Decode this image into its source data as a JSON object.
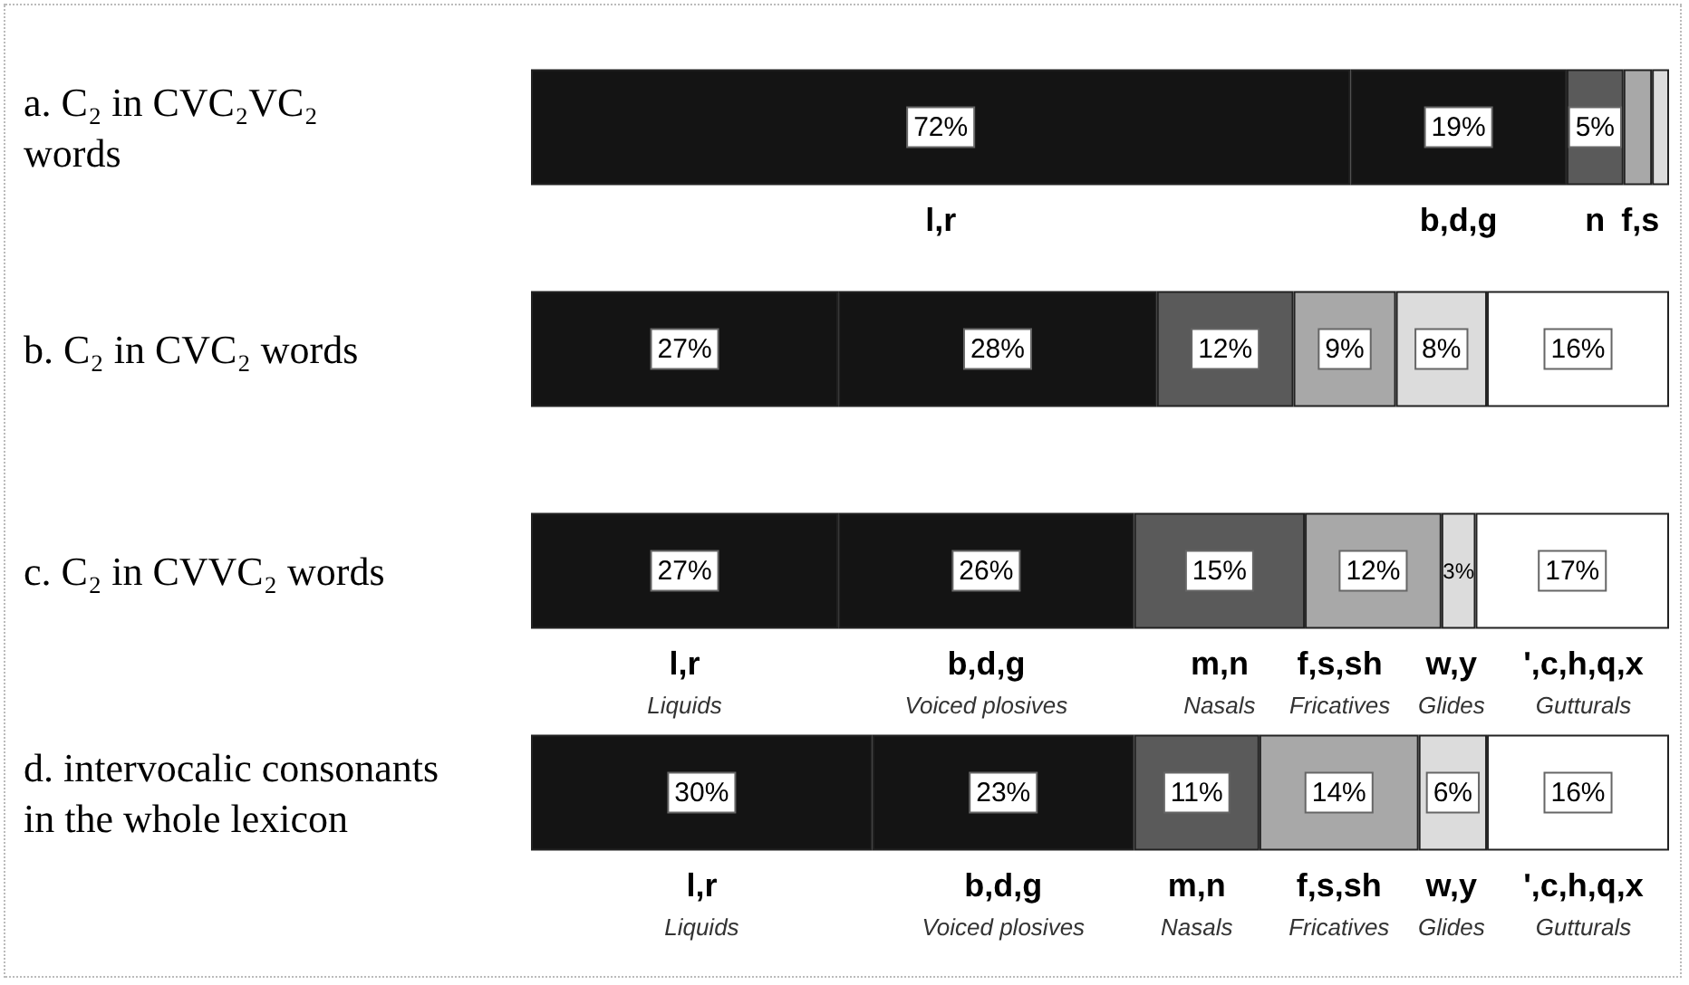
{
  "chart_data": {
    "type": "bar",
    "orientation": "horizontal",
    "stacked": true,
    "categories": [
      "a. C₂ in CVC₂VC₂ words",
      "b. C₂ in CVC₂ words",
      "c. C₂ in CVVC₂ words",
      "d. intervocalic consonants in the whole lexicon"
    ],
    "xlim": [
      0,
      100
    ],
    "tick_labels": "y",
    "grid": false,
    "series": [
      {
        "color": "#141414",
        "values": [
          72,
          27,
          27,
          30
        ],
        "value_labels": [
          "72%",
          "27%",
          "27%",
          "30%"
        ]
      },
      {
        "color": "#141414",
        "values": [
          19,
          28,
          26,
          23
        ],
        "value_labels": [
          "19%",
          "28%",
          "26%",
          "23%"
        ]
      },
      {
        "color": "#5a5a5a",
        "values": [
          5,
          12,
          15,
          11
        ],
        "value_labels": [
          "5%",
          "12%",
          "15%",
          "11%"
        ]
      },
      {
        "color": "#a8a8a8",
        "values": [
          2.5,
          9,
          12,
          14
        ],
        "value_labels": [
          null,
          "9%",
          "12%",
          "14%"
        ]
      },
      {
        "color": "#dcdcdc",
        "values": [
          1.5,
          8,
          3,
          6
        ],
        "value_labels": [
          null,
          "8%",
          "3%",
          "6%"
        ]
      },
      {
        "color": "#ffffff",
        "values": [
          null,
          16,
          17,
          16
        ],
        "value_labels": [
          null,
          "16%",
          "17%",
          "16%"
        ]
      }
    ],
    "annotations": [
      "l,r",
      "b,d,g",
      "n",
      "f,s",
      "l,r\nLiquids",
      "b,d,g\nVoiced plosives",
      "m,n\nNasals",
      "f,s,sh\nFricatives",
      "w,y\nGlides",
      "',c,h,q,x\nGutturals",
      "l,r\nLiquids",
      "b,d,g\nVoiced plosives",
      "m,n\nNasals",
      "f,s,sh\nFricatives",
      "w,y\nGlides",
      "',c,h,q,x\nGutturals"
    ]
  }
}
